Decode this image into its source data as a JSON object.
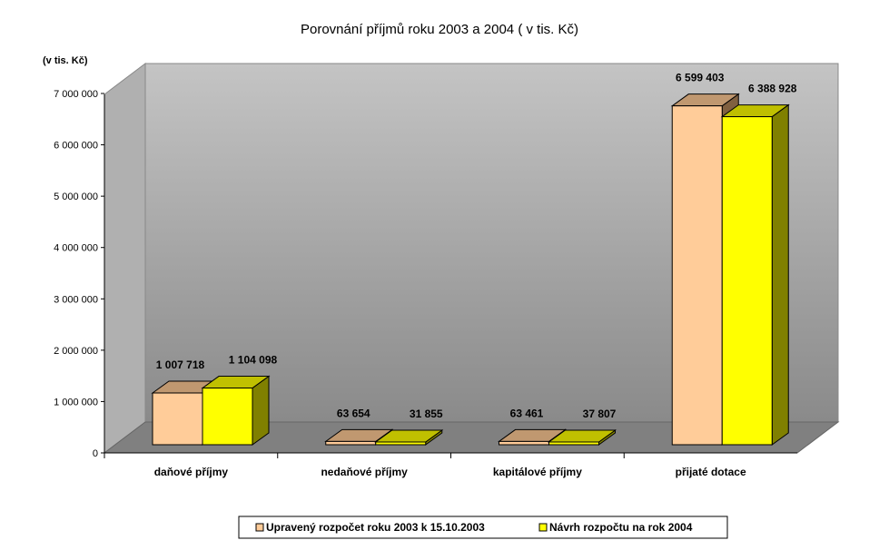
{
  "chart_data": {
    "type": "bar",
    "title": "Porovnání příjmů roku 2003 a 2004 ( v tis. Kč)",
    "ylabel": "(v tis. Kč)",
    "xlabel": "",
    "categories": [
      "daňové příjmy",
      "nedaňové příjmy",
      "kapitálové příjmy",
      "přijaté dotace"
    ],
    "series": [
      {
        "name": "Upravený rozpočet roku 2003 k 15.10.2003",
        "color": "#FFCC99",
        "values": [
          1007718,
          63654,
          63461,
          6599403
        ],
        "labels": [
          "1 007 718",
          "63 654",
          "63 461",
          "6 599 403"
        ]
      },
      {
        "name": "Návrh rozpočtu na rok 2004",
        "color": "#FFFF00",
        "values": [
          1104098,
          31855,
          37807,
          6388928
        ],
        "labels": [
          "1 104 098",
          "31 855",
          "37 807",
          "6 388 928"
        ]
      }
    ],
    "ylim": [
      0,
      7000000
    ],
    "yticks": [
      "0",
      "1 000 000",
      "2 000 000",
      "3 000 000",
      "4 000 000",
      "5 000 000",
      "6 000 000",
      "7 000 000"
    ],
    "grid": false,
    "three_d": true,
    "legend_position": "bottom"
  }
}
